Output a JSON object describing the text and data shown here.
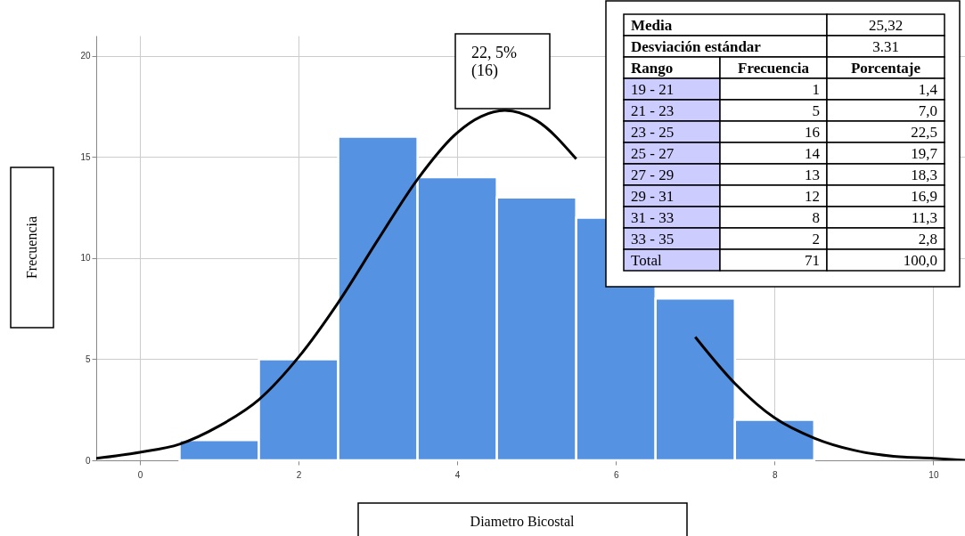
{
  "chart_data": {
    "type": "histogram",
    "xlabel": "Diametro Bicostal",
    "ylabel": "Frecuencia",
    "color": "#5593e2",
    "bins": [
      0.5,
      1.5,
      2.5,
      3.5,
      4.5,
      5.5,
      6.5,
      7.5,
      8.5
    ],
    "values": [
      1,
      5,
      16,
      14,
      13,
      12,
      8,
      2
    ],
    "series": [
      {
        "type": "line",
        "color": "#000000",
        "x": [
          -0.55,
          0,
          0.5,
          1,
          1.5,
          2,
          2.5,
          3,
          3.5,
          4,
          4.3,
          4.6,
          5,
          5.5,
          6,
          6.5,
          7,
          7.5,
          8,
          8.5,
          9,
          9.5,
          10,
          10.4
        ],
        "values": [
          0.1,
          0.4,
          0.8,
          1.7,
          3.0,
          5.1,
          7.8,
          10.9,
          13.9,
          16.2,
          17.0,
          17.3,
          16.8,
          14.9,
          null,
          null,
          6.1,
          3.8,
          2.1,
          1.1,
          0.5,
          0.2,
          0.1,
          0.0
        ]
      }
    ],
    "xlim": [
      -0.55,
      10.4
    ],
    "ylim": [
      0,
      21
    ],
    "xticks": [
      0,
      2,
      4,
      6,
      8,
      10
    ],
    "yticks": [
      0,
      5,
      10,
      15,
      20
    ],
    "grid": true,
    "annotations": [
      "22, 5%\n(16)",
      "Media",
      "25,32",
      "Desviación estándar",
      "3.31",
      "Rango",
      "Frecuencia",
      "Porcentaje",
      "19 - 21",
      "1",
      "1,4",
      "21 - 23",
      "5",
      "7,0",
      "23 - 25",
      "16",
      "22,5",
      "25 - 27",
      "14",
      "19,7",
      "27 - 29",
      "13",
      "18,3",
      "29 - 31",
      "12",
      "16,9",
      "31 - 33",
      "8",
      "11,3",
      "33 - 35",
      "2",
      "2,8",
      "Total",
      "71",
      "100,0"
    ]
  }
}
